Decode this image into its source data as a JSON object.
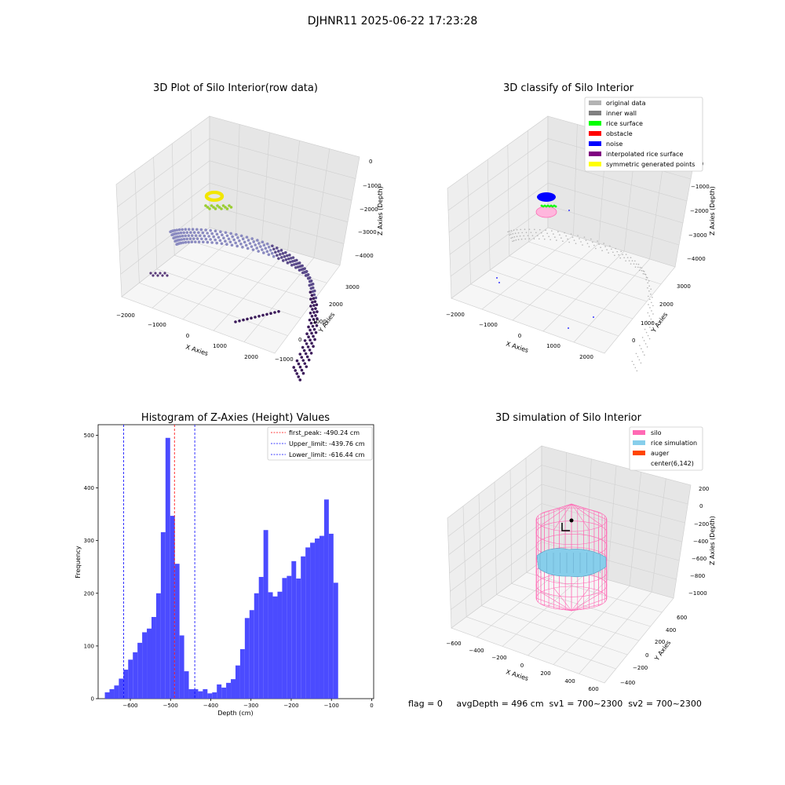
{
  "figure_title": "DJHNR11 2025-06-22 17:23:28",
  "status_line": "flag = 0     avgDepth = 496 cm  sv1 = 700~2300  sv2 = 700~2300",
  "colors": {
    "hist_bar": "#4b4bff",
    "first_peak": "#ff0000",
    "limits": "#0000ff",
    "silo": "#ff69b4",
    "rice": "#87ceeb",
    "auger": "#ff4500",
    "pane": "#f2f2f2"
  },
  "chart_data": [
    {
      "type": "scatter3d",
      "title": "3D Plot of Silo Interior(row data)",
      "xlabel": "X Axies",
      "ylabel": "Y Axies",
      "zlabel": "Z Axies (Depth)",
      "xticks": [
        "−2000",
        "−1000",
        "0",
        "1000",
        "2000"
      ],
      "yticks": [
        "−1000",
        "0",
        "1000",
        "2000",
        "3000"
      ],
      "zticks": [
        "0",
        "−1000",
        "−2000",
        "−3000",
        "−4000"
      ]
    },
    {
      "type": "scatter3d",
      "title": "3D classify of Silo Interior",
      "xlabel": "X Axies",
      "ylabel": "Y Axies",
      "zlabel": "Z Axies (Depth)",
      "xticks": [
        "−2000",
        "−1000",
        "0",
        "1000",
        "2000"
      ],
      "yticks": [
        "0",
        "1000",
        "2000",
        "3000"
      ],
      "zticks": [
        "0",
        "−1000",
        "−2000",
        "−3000",
        "−4000"
      ],
      "legend": [
        {
          "label": "original data",
          "color": "#b3b3b3"
        },
        {
          "label": "inner wall",
          "color": "#808080"
        },
        {
          "label": "rice surface",
          "color": "#00ff00"
        },
        {
          "label": "obstacle",
          "color": "#ff0000"
        },
        {
          "label": "noise",
          "color": "#0000ff"
        },
        {
          "label": "interpolated rice surface",
          "color": "#800080"
        },
        {
          "label": "symmetric generated points",
          "color": "#ffff00"
        }
      ]
    },
    {
      "type": "bar",
      "title": "Histogram of Z-Axies (Height) Values",
      "xlabel": "Depth (cm)",
      "ylabel": "Frequency",
      "xlim": [
        -680,
        5
      ],
      "ylim": [
        0,
        520
      ],
      "xticks": [
        -600,
        -500,
        -400,
        -300,
        -200,
        -100,
        0
      ],
      "xtick_labels": [
        "−600",
        "−500",
        "−400",
        "−300",
        "−200",
        "−100",
        "0"
      ],
      "yticks": [
        0,
        100,
        200,
        300,
        400,
        500
      ],
      "yticks_labels": [
        "0",
        "100",
        "200",
        "300",
        "400",
        "500"
      ],
      "bin_start": -663.3,
      "bin_width": 11.6,
      "values": [
        12,
        18,
        25,
        38,
        55,
        74,
        88,
        106,
        126,
        133,
        155,
        200,
        316,
        495,
        347,
        256,
        120,
        52,
        18,
        18,
        14,
        18,
        10,
        12,
        27,
        21,
        30,
        37,
        63,
        94,
        153,
        168,
        200,
        231,
        320,
        202,
        194,
        203,
        229,
        233,
        261,
        228,
        270,
        287,
        296,
        304,
        309,
        378,
        313,
        220
      ],
      "lines": [
        {
          "name": "first_peak",
          "x": -490.24,
          "label": "first_peak: -490.24 cm",
          "color": "#ff0000"
        },
        {
          "name": "upper_limit",
          "x": -439.76,
          "label": "Upper_limit: -439.76 cm",
          "color": "#0000ff"
        },
        {
          "name": "lower_limit",
          "x": -616.44,
          "label": "Lower_limit: -616.44 cm",
          "color": "#0000ff"
        }
      ]
    },
    {
      "type": "surface3d",
      "title": "3D simulation of Silo Interior",
      "xlabel": "X Axies",
      "ylabel": "Y Axies",
      "zlabel": "Z Axies (Depth)",
      "xticks": [
        "−600",
        "−400",
        "−200",
        "0",
        "200",
        "400",
        "600"
      ],
      "yticks": [
        "−400",
        "−200",
        "0",
        "200",
        "400",
        "600"
      ],
      "zticks": [
        "200",
        "0",
        "−200",
        "−400",
        "−600",
        "−800",
        "−1000"
      ],
      "legend": [
        {
          "label": "silo",
          "color": "#ff69b4"
        },
        {
          "label": "rice simulation",
          "color": "#87ceeb"
        },
        {
          "label": "auger",
          "color": "#ff4500"
        },
        {
          "label": "center(6,142)",
          "color": "#ffffff"
        }
      ]
    }
  ]
}
